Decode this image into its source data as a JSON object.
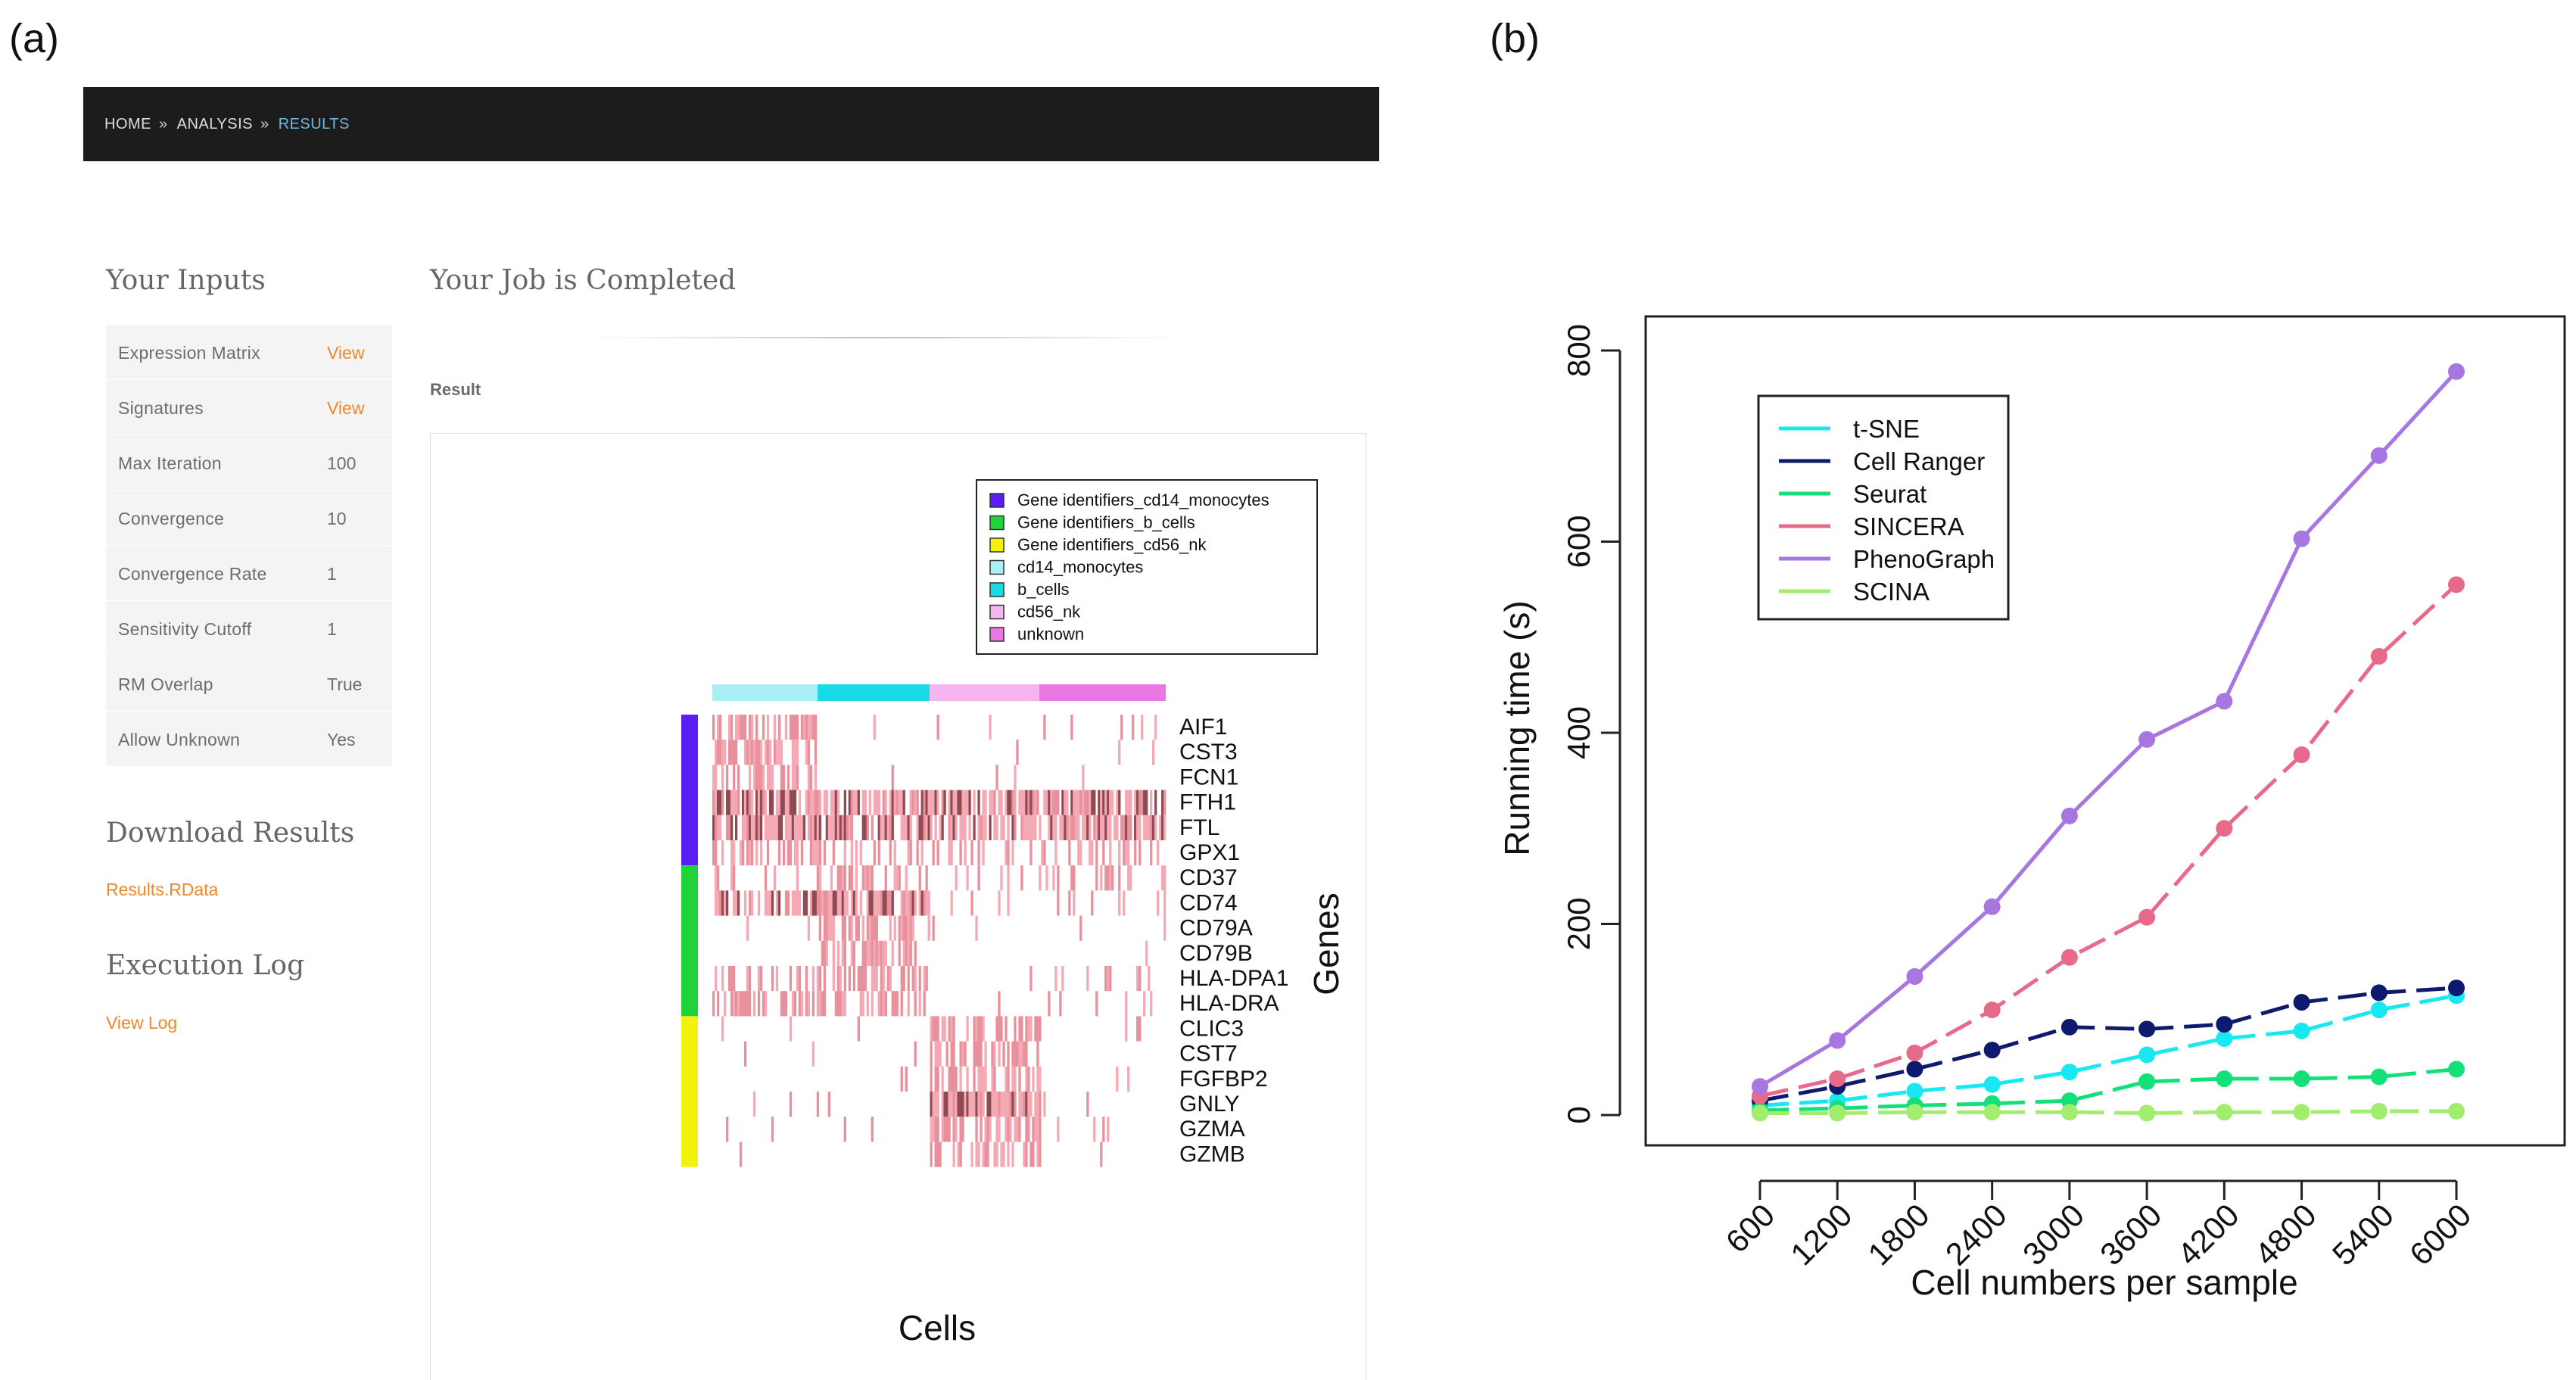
{
  "panel_labels": {
    "a": "(a)",
    "b": "(b)"
  },
  "breadcrumb": {
    "home": "HOME",
    "analysis": "ANALYSIS",
    "results": "RESULTS",
    "separator": "»"
  },
  "inputs": {
    "title": "Your Inputs",
    "rows": [
      {
        "label": "Expression Matrix",
        "value": "View",
        "link": true
      },
      {
        "label": "Signatures",
        "value": "View",
        "link": true
      },
      {
        "label": "Max Iteration",
        "value": "100",
        "link": false
      },
      {
        "label": "Convergence",
        "value": "10",
        "link": false
      },
      {
        "label": "Convergence Rate",
        "value": "1",
        "link": false
      },
      {
        "label": "Sensitivity Cutoff",
        "value": "1",
        "link": false
      },
      {
        "label": "RM Overlap",
        "value": "True",
        "link": false
      },
      {
        "label": "Allow Unknown",
        "value": "Yes",
        "link": false
      }
    ]
  },
  "download": {
    "title": "Download Results",
    "link": "Results.RData"
  },
  "execution": {
    "title": "Execution Log",
    "link": "View Log"
  },
  "job": {
    "title": "Your Job is Completed",
    "result_label": "Result"
  },
  "heatmap": {
    "legend": [
      {
        "label": "Gene identifiers_cd14_monocytes",
        "color": "#5a1ef2"
      },
      {
        "label": "Gene identifiers_b_cells",
        "color": "#21d33a"
      },
      {
        "label": "Gene identifiers_cd56_nk",
        "color": "#f2f20c"
      },
      {
        "label": "cd14_monocytes",
        "color": "#a8f0f5"
      },
      {
        "label": "b_cells",
        "color": "#18dbe6"
      },
      {
        "label": "cd56_nk",
        "color": "#f6b4f0"
      },
      {
        "label": "unknown",
        "color": "#ea77e2"
      }
    ],
    "genes": [
      "AIF1",
      "CST3",
      "FCN1",
      "FTH1",
      "FTL",
      "GPX1",
      "CD37",
      "CD74",
      "CD79A",
      "CD79B",
      "HLA-DPA1",
      "HLA-DRA",
      "CLIC3",
      "CST7",
      "FGFBP2",
      "GNLY",
      "GZMA",
      "GZMB"
    ],
    "y_label": "Genes",
    "x_label": "Cells"
  },
  "colors": {
    "t-SNE": "#17e8f2",
    "Cell Ranger": "#0d1a6e",
    "Seurat": "#14e07a",
    "SINCERA": "#e86a8a",
    "PhenoGraph": "#a776e0",
    "SCINA": "#a2ec6e"
  },
  "chart_data": {
    "type": "line",
    "title": "",
    "xlabel": "Cell numbers per sample",
    "ylabel": "Running time (s)",
    "categories": [
      "600",
      "1200",
      "1800",
      "2400",
      "3000",
      "3600",
      "4200",
      "4800",
      "5400",
      "6000"
    ],
    "yticks": [
      "0",
      "200",
      "400",
      "600",
      "800"
    ],
    "ylim": [
      0,
      800
    ],
    "grid": false,
    "legend_position": "top-left",
    "series": [
      {
        "name": "t-SNE",
        "values": [
          10,
          15,
          25,
          32,
          45,
          63,
          80,
          88,
          110,
          125
        ]
      },
      {
        "name": "Cell Ranger",
        "values": [
          15,
          30,
          48,
          68,
          92,
          90,
          95,
          118,
          128,
          133
        ]
      },
      {
        "name": "Seurat",
        "values": [
          5,
          7,
          10,
          12,
          15,
          35,
          38,
          38,
          40,
          48
        ]
      },
      {
        "name": "SINCERA",
        "values": [
          20,
          38,
          65,
          110,
          165,
          207,
          300,
          377,
          480,
          555
        ]
      },
      {
        "name": "PhenoGraph",
        "values": [
          30,
          78,
          145,
          218,
          313,
          393,
          433,
          603,
          690,
          778
        ]
      },
      {
        "name": "SCINA",
        "values": [
          2,
          2,
          3,
          3,
          3,
          2,
          3,
          3,
          4,
          4
        ]
      }
    ]
  }
}
